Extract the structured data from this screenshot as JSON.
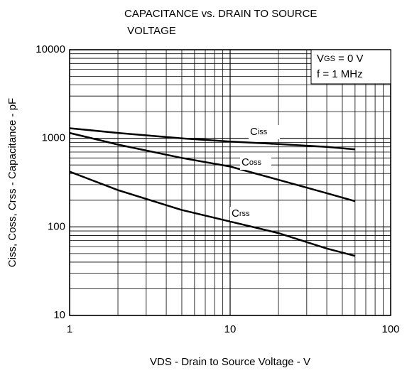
{
  "chart_data": {
    "type": "line",
    "title": "CAPACITANCE vs. DRAIN TO SOURCE VOLTAGE",
    "x_label": "VDS - Drain to Source Voltage - V",
    "y_label": "Ciss, Coss, Crss - Capacitance - pF",
    "annotations": [
      "VGS = 0 V",
      "f = 1 MHz"
    ],
    "x": [
      1,
      2,
      5,
      10,
      20,
      40,
      60
    ],
    "series": [
      {
        "name": "Ciss",
        "color": "#000000",
        "values": [
          1300,
          1150,
          1000,
          920,
          860,
          800,
          750
        ]
      },
      {
        "name": "Coss",
        "color": "#000000",
        "values": [
          1150,
          850,
          600,
          480,
          340,
          240,
          195
        ]
      },
      {
        "name": "Crss",
        "color": "#000000",
        "values": [
          420,
          260,
          155,
          115,
          85,
          57,
          47
        ]
      }
    ],
    "xlim": [
      1,
      100
    ],
    "xticks": [
      1,
      10,
      100
    ],
    "ylim": [
      10,
      10000
    ],
    "yticks": [
      10,
      100,
      1000,
      10000
    ],
    "xscale": "log",
    "yscale": "log",
    "grid": true
  }
}
